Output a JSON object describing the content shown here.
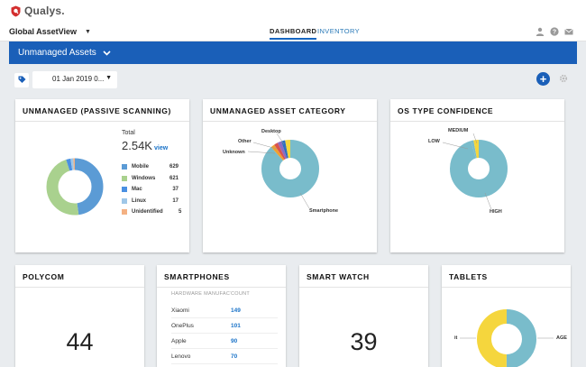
{
  "app": {
    "brand": "Qualys.",
    "module": "Global AssetView"
  },
  "nav": {
    "tabs": [
      "DASHBOARD",
      "INVENTORY"
    ],
    "active": "DASHBOARD"
  },
  "dashboard": {
    "name": "Unmanaged Assets"
  },
  "filter": {
    "date": "01 Jan 2019 0..."
  },
  "colors": {
    "brand_blue": "#1a5fb8",
    "brand_red": "#d32f2f",
    "teal": "#79bccb",
    "yellow": "#f5d63d",
    "link": "#1a73c8"
  },
  "widgets": {
    "passive": {
      "title": "UNMANAGED (PASSIVE SCANNING)",
      "total_label": "Total",
      "total_value": "2.54K",
      "view_link": "view",
      "legend": [
        {
          "name": "Mobile",
          "value": "629",
          "color": "#5b9bd5"
        },
        {
          "name": "Windows",
          "value": "621",
          "color": "#a9d18e"
        },
        {
          "name": "Mac",
          "value": "37",
          "color": "#4a90e2"
        },
        {
          "name": "Linux",
          "value": "17",
          "color": "#9fc7e8"
        },
        {
          "name": "Unidentified",
          "value": "5",
          "color": "#f4b183"
        }
      ]
    },
    "category": {
      "title": "UNMANAGED ASSET CATEGORY",
      "labels": {
        "desktop": "Desktop",
        "other": "Other",
        "unknown": "Unknown",
        "smartphone": "Smartphone"
      }
    },
    "os_confidence": {
      "title": "OS TYPE CONFIDENCE",
      "labels": {
        "medium": "MEDIUM",
        "low": "LOW",
        "high": "HIGH"
      }
    },
    "polycom": {
      "title": "POLYCOM",
      "value": "44"
    },
    "smartphones": {
      "title": "SMARTPHONES",
      "columns": [
        "HARDWARE MANUFACTUR",
        "COUNT"
      ],
      "rows": [
        {
          "maker": "Xiaomi",
          "count": "149"
        },
        {
          "maker": "OnePlus",
          "count": "101"
        },
        {
          "maker": "Apple",
          "count": "90"
        },
        {
          "maker": "Lenovo",
          "count": "70"
        }
      ]
    },
    "smartwatch": {
      "title": "SMART WATCH",
      "value": "39"
    },
    "tablets": {
      "title": "TABLETS",
      "labels": {
        "left": "it",
        "right": "AGE"
      }
    }
  }
}
